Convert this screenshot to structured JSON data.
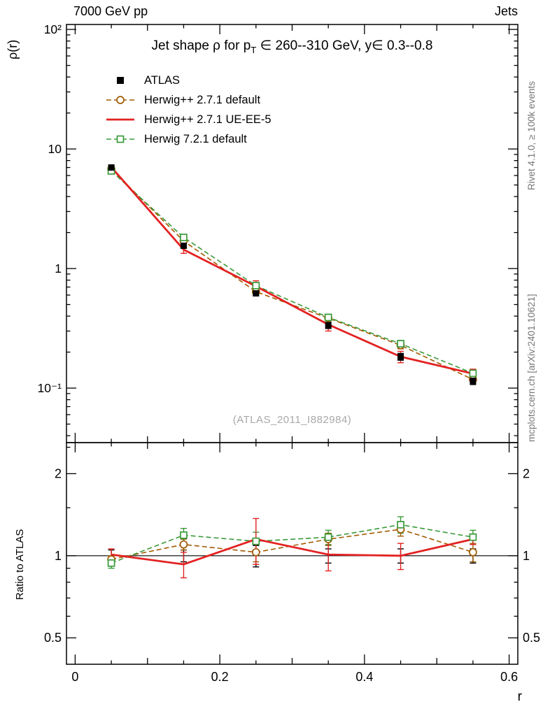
{
  "header": {
    "left": "7000 GeV pp",
    "right": "Jets"
  },
  "titles": {
    "main_pre": "Jet shape ρ for p",
    "main_sub": "T",
    "main_post": " ∈ 260--310 GeV, y∈ 0.3--0.8"
  },
  "watermark": "(ATLAS_2011_I882984)",
  "side_notes": {
    "top_right": "Rivet 4.1.0, ≥ 100k events",
    "bottom_right": "mcplots.cern.ch [arXiv:2401.10621]"
  },
  "axes": {
    "x": {
      "label": "r",
      "major": [
        0,
        0.2,
        0.4,
        0.6
      ],
      "major_labels": [
        "0",
        "0.2",
        "0.4",
        "0.6"
      ]
    },
    "y_top": {
      "label": "ρ(r)",
      "scale": "log",
      "ticks": [
        100,
        10,
        1,
        0.1
      ],
      "tick_labels": [
        "10²",
        "10",
        "1",
        "10⁻¹"
      ]
    },
    "y_bottom": {
      "label": "Ratio to ATLAS",
      "scale": "log",
      "ticks": [
        2,
        1,
        0.5
      ],
      "tick_labels": [
        "2",
        "1",
        "0.5"
      ]
    }
  },
  "chart_data": {
    "type": "line",
    "title": "Jet shape ρ for pT ∈ 260--310 GeV, y∈ 0.3--0.8",
    "xlabel": "r",
    "ylabel": "ρ(r)",
    "ylabel_ratio": "Ratio to ATLAS",
    "xlim": [
      -0.012,
      0.612
    ],
    "ylim_top": [
      0.035,
      110
    ],
    "ylim_ratio": [
      0.4,
      2.6
    ],
    "x": [
      0.05,
      0.15,
      0.25,
      0.35,
      0.45,
      0.55
    ],
    "series": [
      {
        "name": "ATLAS",
        "is_data": true,
        "color": "#000000",
        "line": "none",
        "marker": "filled-square",
        "values": [
          7.0,
          1.55,
          0.62,
          0.335,
          0.183,
          0.115
        ],
        "errors": [
          0.25,
          0.06,
          0.03,
          0.02,
          0.012,
          0.008
        ],
        "ratio": [
          1,
          1,
          1,
          1,
          1,
          1
        ],
        "ratio_errors": [
          0.05,
          0.05,
          0.09,
          0.06,
          0.06,
          0.06
        ]
      },
      {
        "name": "Herwig++ 2.7.1 default",
        "is_data": false,
        "color": "#a05a00",
        "line": "dashed",
        "marker": "open-circle",
        "values": [
          6.8,
          1.7,
          0.64,
          0.385,
          0.228,
          0.118
        ],
        "errors": [
          0.15,
          0.05,
          0.03,
          0.02,
          0.015,
          0.01
        ],
        "ratio": [
          0.97,
          1.1,
          1.03,
          1.15,
          1.25,
          1.03
        ],
        "ratio_errors": [
          0.03,
          0.05,
          0.08,
          0.06,
          0.07,
          0.08
        ]
      },
      {
        "name": "Herwig++ 2.7.1 UE-EE-5",
        "is_data": false,
        "color": "#e32222",
        "line": "solid",
        "marker": "none",
        "values": [
          7.05,
          1.44,
          0.71,
          0.34,
          0.183,
          0.132
        ],
        "errors": [
          0.2,
          0.1,
          0.08,
          0.04,
          0.02,
          0.012
        ],
        "ratio": [
          1.01,
          0.93,
          1.15,
          1.01,
          1.0,
          1.15
        ],
        "ratio_errors": [
          0.05,
          0.1,
          0.22,
          0.13,
          0.11,
          0.05
        ]
      },
      {
        "name": "Herwig 7.2.1 default",
        "is_data": false,
        "color": "#3a9a3a",
        "line": "dashed",
        "marker": "open-square",
        "values": [
          6.55,
          1.82,
          0.72,
          0.39,
          0.235,
          0.133
        ],
        "errors": [
          0.25,
          0.08,
          0.04,
          0.025,
          0.015,
          0.01
        ],
        "ratio": [
          0.94,
          1.19,
          1.13,
          1.17,
          1.3,
          1.17
        ],
        "ratio_errors": [
          0.04,
          0.07,
          0.09,
          0.07,
          0.09,
          0.07
        ]
      }
    ]
  }
}
